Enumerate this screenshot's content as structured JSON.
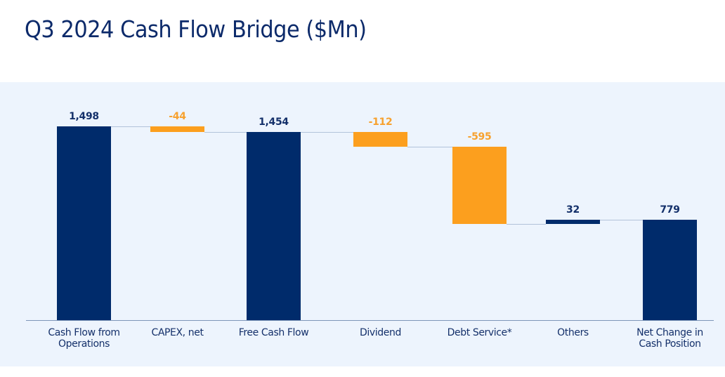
{
  "title": "Q3 2024 Cash Flow Bridge ($Mn)",
  "colors": {
    "total": "#002b6b",
    "decrease": "#fc9f1e",
    "increase": "#002b6b",
    "panel_bg": "#edf4fd",
    "title": "#0c2a6a"
  },
  "chart_data": {
    "type": "bar",
    "subtype": "waterfall",
    "title": "Q3 2024 Cash Flow Bridge ($Mn)",
    "xlabel": "",
    "ylabel": "",
    "categories": [
      "Cash Flow from Operations",
      "CAPEX, net",
      "Free Cash Flow",
      "Dividend",
      "Debt Service*",
      "Others",
      "Net Change in Cash Position"
    ],
    "values": [
      1498,
      -44,
      1454,
      -112,
      -595,
      32,
      779
    ],
    "value_labels": [
      "1,498",
      "-44",
      "1,454",
      "-112",
      "-595",
      "32",
      "779"
    ],
    "bar_types": [
      "total",
      "decrease",
      "total",
      "decrease",
      "decrease",
      "increase",
      "total"
    ],
    "ylim": [
      0,
      1550
    ],
    "grid": false,
    "legend": null
  },
  "bars": [
    {
      "label_line1": "Cash Flow from",
      "label_line2": "Operations",
      "value": "1,498"
    },
    {
      "label_line1": "CAPEX, net",
      "label_line2": "",
      "value": "-44"
    },
    {
      "label_line1": "Free Cash Flow",
      "label_line2": "",
      "value": "1,454"
    },
    {
      "label_line1": "Dividend",
      "label_line2": "",
      "value": "-112"
    },
    {
      "label_line1": "Debt Service*",
      "label_line2": "",
      "value": "-595"
    },
    {
      "label_line1": "Others",
      "label_line2": "",
      "value": "32"
    },
    {
      "label_line1": "Net Change in",
      "label_line2": "Cash Position",
      "value": "779"
    }
  ]
}
